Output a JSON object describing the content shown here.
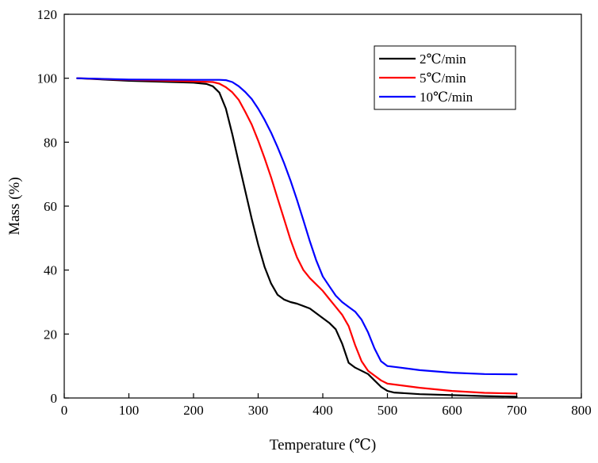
{
  "chart_data": {
    "type": "line",
    "title": "",
    "xlabel": "Temperature (℃)",
    "ylabel": "Mass (%)",
    "xlim": [
      0,
      800
    ],
    "ylim": [
      0,
      120
    ],
    "xticks": [
      0,
      100,
      200,
      300,
      400,
      500,
      600,
      700,
      800
    ],
    "yticks": [
      0,
      20,
      40,
      60,
      80,
      100,
      120
    ],
    "grid": false,
    "legend_position": "top-right",
    "series": [
      {
        "name": "2℃/min",
        "color": "#000000",
        "x": [
          20,
          100,
          200,
          220,
          230,
          240,
          250,
          260,
          270,
          280,
          290,
          300,
          310,
          320,
          330,
          340,
          350,
          360,
          380,
          400,
          410,
          420,
          430,
          440,
          450,
          460,
          470,
          480,
          490,
          500,
          510,
          550,
          600,
          650,
          700
        ],
        "y": [
          100,
          99.2,
          98.6,
          98.2,
          97.5,
          95.5,
          90.5,
          82.5,
          73.5,
          64.8,
          56,
          48,
          41,
          35.8,
          32.3,
          30.8,
          30,
          29.5,
          28,
          25,
          23.5,
          21.5,
          17,
          11,
          9.5,
          8.5,
          7.5,
          5.5,
          3.5,
          2.2,
          1.7,
          1.2,
          0.9,
          0.6,
          0.4
        ]
      },
      {
        "name": "5℃/min",
        "color": "#ff0000",
        "x": [
          20,
          100,
          200,
          230,
          240,
          250,
          260,
          270,
          280,
          290,
          300,
          310,
          320,
          330,
          340,
          350,
          360,
          370,
          380,
          400,
          410,
          420,
          430,
          440,
          450,
          460,
          470,
          480,
          490,
          500,
          550,
          600,
          650,
          700
        ],
        "y": [
          100,
          99.5,
          99,
          98.8,
          98.3,
          97.2,
          95.6,
          93.2,
          89.5,
          85.5,
          80.5,
          75,
          69,
          62.5,
          56,
          49.5,
          44,
          40,
          37.5,
          33.5,
          31,
          28.5,
          26,
          22.5,
          16.5,
          11.5,
          8.5,
          7,
          5.5,
          4.5,
          3.2,
          2.2,
          1.6,
          1.4
        ]
      },
      {
        "name": "10℃/min",
        "color": "#0000ff",
        "x": [
          20,
          100,
          200,
          240,
          250,
          260,
          270,
          280,
          290,
          300,
          310,
          320,
          330,
          340,
          350,
          360,
          370,
          380,
          390,
          400,
          410,
          420,
          430,
          440,
          450,
          460,
          470,
          480,
          490,
          500,
          520,
          550,
          600,
          650,
          700
        ],
        "y": [
          100,
          99.6,
          99.5,
          99.5,
          99.4,
          98.8,
          97.5,
          95.7,
          93.5,
          90.5,
          87,
          83,
          78.5,
          73.5,
          68,
          62,
          55.5,
          49,
          43,
          38,
          35,
          32,
          30,
          28.5,
          27,
          24.5,
          20.5,
          15.5,
          11.5,
          10,
          9.5,
          8.7,
          7.9,
          7.5,
          7.4
        ]
      }
    ]
  }
}
